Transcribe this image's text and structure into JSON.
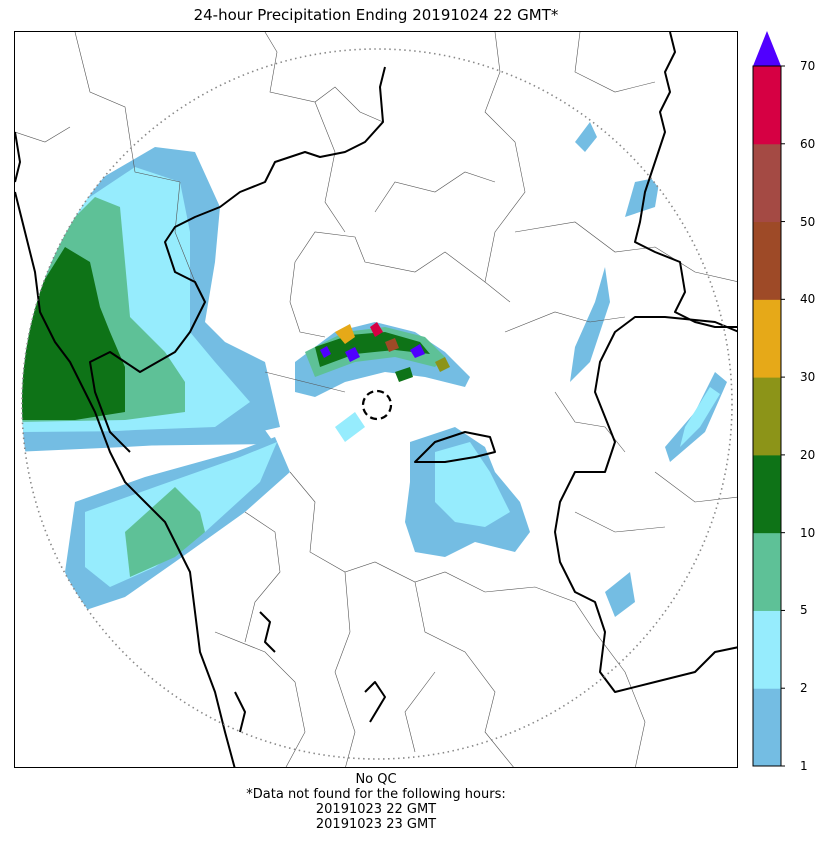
{
  "title": "24-hour Precipitation Ending 20191024 22 GMT*",
  "colorbar": {
    "ticks": [
      "1",
      "2",
      "5",
      "10",
      "20",
      "30",
      "40",
      "50",
      "60",
      "70"
    ],
    "colors": [
      "#74bde3",
      "#96ecfd",
      "#5ec197",
      "#0e7317",
      "#8c9418",
      "#e6a918",
      "#9e4a27",
      "#a44a44",
      "#d60043"
    ],
    "over_color": "#5000ff",
    "extend": "max"
  },
  "footer": {
    "qc": "No QC",
    "note": "*Data not found for the following hours:",
    "missing_hours": [
      "20191023 22 GMT",
      "20191023 23 GMT"
    ]
  }
}
